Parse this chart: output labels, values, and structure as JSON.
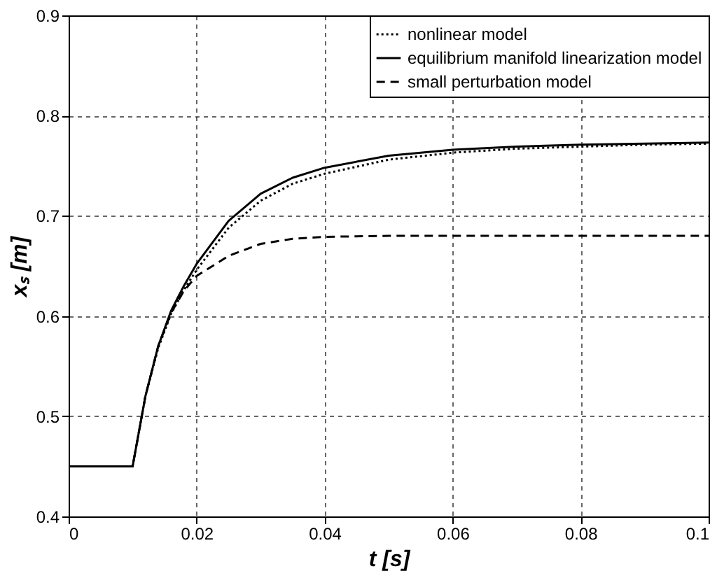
{
  "chart_data": {
    "type": "line",
    "xlabel": "t [s]",
    "ylabel": "xₛ [m]",
    "x": [
      0,
      0.01,
      0.012,
      0.014,
      0.016,
      0.018,
      0.02,
      0.025,
      0.03,
      0.035,
      0.04,
      0.05,
      0.06,
      0.07,
      0.08,
      0.09,
      0.1
    ],
    "series": [
      {
        "name": "nonlinear model",
        "color": "#000000",
        "line_style": "dotted",
        "values": [
          0.45,
          0.45,
          0.52,
          0.568,
          0.602,
          0.626,
          0.646,
          0.688,
          0.715,
          0.732,
          0.742,
          0.756,
          0.763,
          0.767,
          0.769,
          0.771,
          0.772
        ]
      },
      {
        "name": "equilibrium manifold linearization model",
        "color": "#000000",
        "line_style": "solid",
        "values": [
          0.45,
          0.45,
          0.52,
          0.57,
          0.605,
          0.63,
          0.652,
          0.695,
          0.722,
          0.738,
          0.748,
          0.76,
          0.766,
          0.769,
          0.771,
          0.772,
          0.773
        ]
      },
      {
        "name": "small perturbation model",
        "color": "#000000",
        "line_style": "dashed",
        "values": [
          0.45,
          0.45,
          0.52,
          0.57,
          0.603,
          0.625,
          0.64,
          0.66,
          0.672,
          0.677,
          0.679,
          0.68,
          0.68,
          0.68,
          0.68,
          0.68,
          0.68
        ]
      }
    ],
    "xlim": [
      0,
      0.1
    ],
    "xticks": [
      0,
      0.02,
      0.04,
      0.06,
      0.08,
      0.1
    ],
    "ylim": [
      0.4,
      0.9
    ],
    "yticks": [
      0.4,
      0.5,
      0.6,
      0.7,
      0.8,
      0.9
    ],
    "grid": true,
    "legend": "top right",
    "marker": "none"
  }
}
